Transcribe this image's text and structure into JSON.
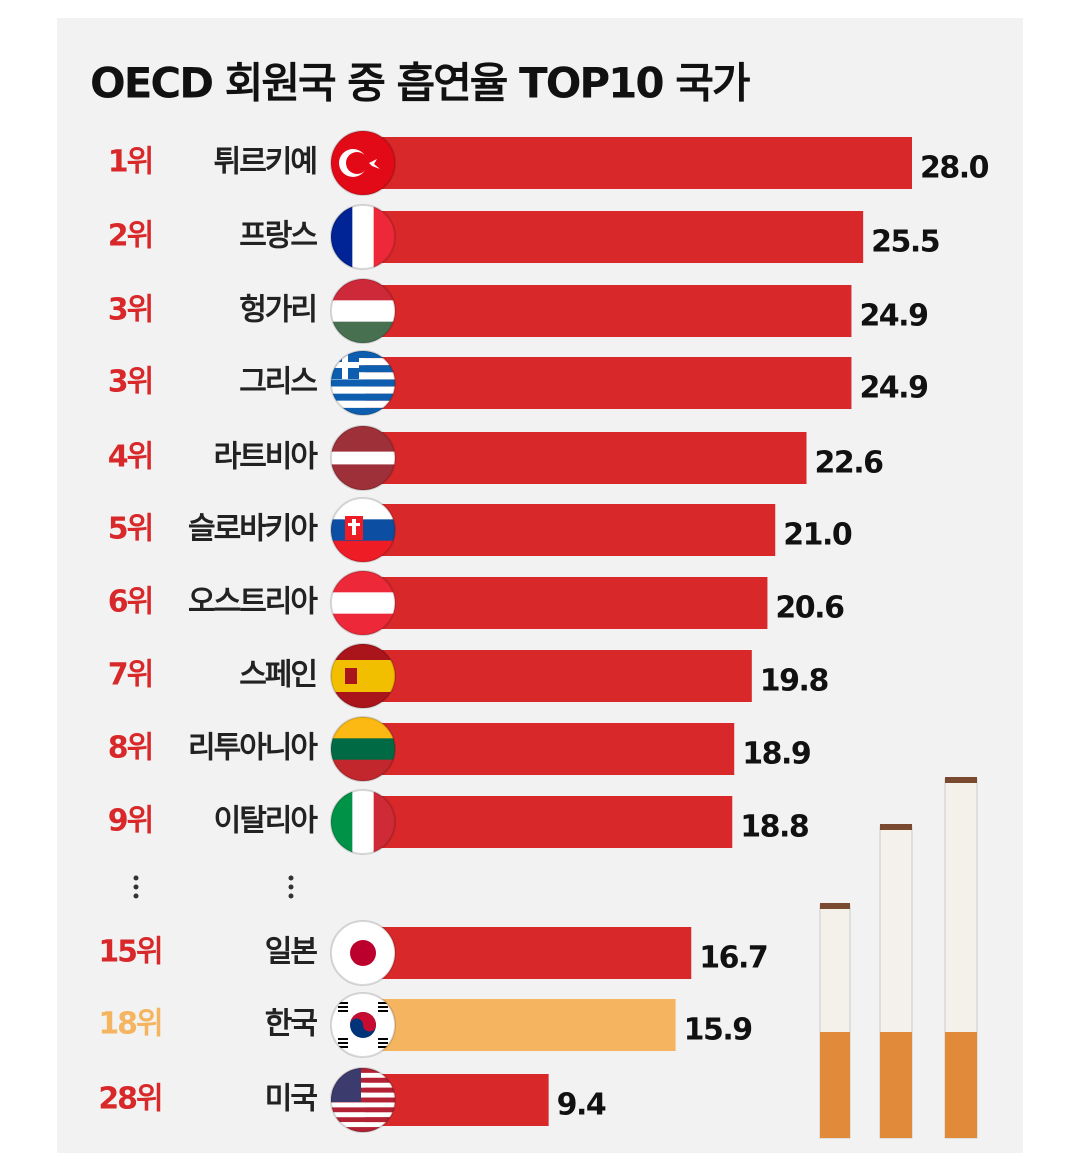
{
  "chart_data": {
    "type": "bar",
    "title": "OECD 회원국 중 흡연율 TOP10 국가",
    "ranks": [
      "1위",
      "2위",
      "3위",
      "3위",
      "4위",
      "5위",
      "6위",
      "7위",
      "8위",
      "9위",
      "15위",
      "18위",
      "28위"
    ],
    "categories": [
      "튀르키예",
      "프랑스",
      "헝가리",
      "그리스",
      "라트비아",
      "슬로바키아",
      "오스트리아",
      "스페인",
      "리투아니아",
      "이탈리아",
      "일본",
      "한국",
      "미국"
    ],
    "values": [
      28.0,
      25.5,
      24.9,
      24.9,
      22.6,
      21.0,
      20.6,
      19.8,
      18.9,
      18.8,
      16.7,
      15.9,
      9.4
    ],
    "value_labels": [
      "28.0",
      "25.5",
      "24.9",
      "24.9",
      "22.6",
      "21.0",
      "20.6",
      "19.8",
      "18.9",
      "18.8",
      "16.7",
      "15.9",
      "9.4"
    ],
    "colors": [
      "#d8282a",
      "#d8282a",
      "#d8282a",
      "#d8282a",
      "#d8282a",
      "#d8282a",
      "#d8282a",
      "#d8282a",
      "#d8282a",
      "#d8282a",
      "#d8282a",
      "#f5b460",
      "#d8282a"
    ]
  }
}
